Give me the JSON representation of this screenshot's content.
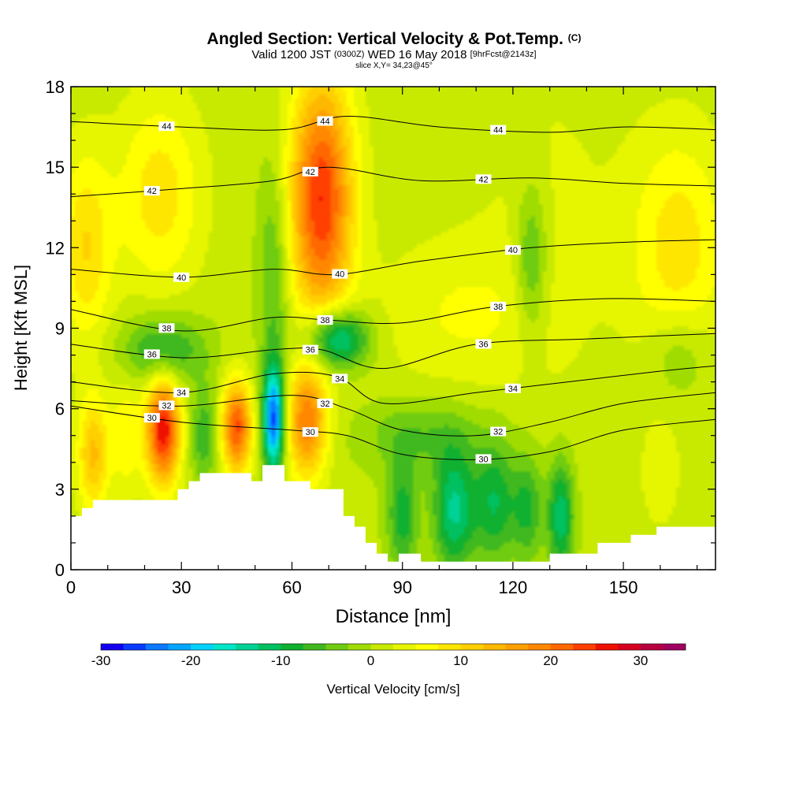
{
  "header": {
    "title_main": "Angled Section: Vertical Velocity & Pot.Temp.",
    "title_tag": "(C)",
    "valid_prefix": "Valid 1200 JST",
    "valid_utc": "(0300Z)",
    "valid_date": "WED 16 May 2018",
    "forecast_info": "[9hrFcst@2143z]",
    "slice_info": "slice X,Y= 34,23@45°"
  },
  "chart_data": {
    "type": "heatmap",
    "xlabel": "Distance [nm]",
    "ylabel": "Height [Kft MSL]",
    "xlim": [
      0,
      175
    ],
    "ylim": [
      0,
      18
    ],
    "x_ticks": [
      0,
      30,
      60,
      90,
      120,
      150
    ],
    "y_ticks": [
      0,
      3,
      6,
      9,
      12,
      15,
      18
    ],
    "colorbar": {
      "label": "Vertical Velocity [cm/s]",
      "min": -30,
      "max": 35,
      "step": 2.5,
      "ticks": [
        -30,
        -20,
        -10,
        0,
        10,
        20,
        30
      ],
      "colors": [
        "#1400f0",
        "#0a3cff",
        "#0a78ff",
        "#00a6ff",
        "#00d2ff",
        "#00e6c8",
        "#00d296",
        "#00c060",
        "#10b030",
        "#40b820",
        "#70cc10",
        "#a0dc00",
        "#c8ea00",
        "#e6f500",
        "#ffff00",
        "#ffe600",
        "#ffd000",
        "#ffb800",
        "#ffa000",
        "#ff8800",
        "#ff6800",
        "#ff4000",
        "#f01000",
        "#d80020",
        "#b80040",
        "#a00060",
        "#800080"
      ]
    },
    "theta_contours": [
      {
        "label": "30",
        "points": [
          [
            0,
            6.1
          ],
          [
            30,
            5.5
          ],
          [
            60,
            5.2
          ],
          [
            75,
            5.0
          ],
          [
            90,
            4.3
          ],
          [
            110,
            4.1
          ],
          [
            130,
            4.4
          ],
          [
            150,
            5.2
          ],
          [
            175,
            5.6
          ]
        ]
      },
      {
        "label": "32",
        "points": [
          [
            0,
            6.3
          ],
          [
            30,
            6.1
          ],
          [
            60,
            6.5
          ],
          [
            75,
            6.0
          ],
          [
            90,
            5.2
          ],
          [
            110,
            5.0
          ],
          [
            130,
            5.5
          ],
          [
            150,
            6.2
          ],
          [
            175,
            6.6
          ]
        ]
      },
      {
        "label": "34",
        "points": [
          [
            0,
            7.0
          ],
          [
            30,
            6.6
          ],
          [
            55,
            7.3
          ],
          [
            72,
            7.2
          ],
          [
            85,
            6.2
          ],
          [
            110,
            6.6
          ],
          [
            135,
            7.0
          ],
          [
            160,
            7.4
          ],
          [
            175,
            7.6
          ]
        ]
      },
      {
        "label": "36",
        "points": [
          [
            0,
            8.4
          ],
          [
            30,
            7.9
          ],
          [
            55,
            8.2
          ],
          [
            68,
            8.2
          ],
          [
            85,
            7.5
          ],
          [
            110,
            8.4
          ],
          [
            140,
            8.6
          ],
          [
            175,
            8.8
          ]
        ]
      },
      {
        "label": "38",
        "points": [
          [
            0,
            9.7
          ],
          [
            30,
            8.9
          ],
          [
            55,
            9.4
          ],
          [
            70,
            9.3
          ],
          [
            90,
            9.2
          ],
          [
            115,
            9.8
          ],
          [
            145,
            10.1
          ],
          [
            175,
            10.0
          ]
        ]
      },
      {
        "label": "40",
        "points": [
          [
            0,
            11.2
          ],
          [
            30,
            10.9
          ],
          [
            55,
            11.2
          ],
          [
            72,
            11.0
          ],
          [
            95,
            11.5
          ],
          [
            125,
            12.0
          ],
          [
            150,
            12.2
          ],
          [
            175,
            12.3
          ]
        ]
      },
      {
        "label": "42",
        "points": [
          [
            0,
            13.9
          ],
          [
            30,
            14.2
          ],
          [
            55,
            14.5
          ],
          [
            70,
            15.0
          ],
          [
            95,
            14.5
          ],
          [
            125,
            14.6
          ],
          [
            150,
            14.4
          ],
          [
            175,
            14.3
          ]
        ]
      },
      {
        "label": "44",
        "points": [
          [
            0,
            16.7
          ],
          [
            30,
            16.5
          ],
          [
            58,
            16.4
          ],
          [
            75,
            16.9
          ],
          [
            100,
            16.5
          ],
          [
            130,
            16.3
          ],
          [
            150,
            16.5
          ],
          [
            175,
            16.4
          ]
        ]
      }
    ],
    "terrain_profile": [
      [
        0,
        2.0
      ],
      [
        3,
        2.0
      ],
      [
        3,
        2.3
      ],
      [
        6,
        2.3
      ],
      [
        6,
        2.6
      ],
      [
        29,
        2.6
      ],
      [
        29,
        3.0
      ],
      [
        32,
        3.0
      ],
      [
        32,
        3.3
      ],
      [
        35,
        3.3
      ],
      [
        35,
        3.6
      ],
      [
        49,
        3.6
      ],
      [
        49,
        3.3
      ],
      [
        52,
        3.3
      ],
      [
        52,
        3.9
      ],
      [
        58,
        3.9
      ],
      [
        58,
        3.3
      ],
      [
        65,
        3.3
      ],
      [
        65,
        3.0
      ],
      [
        74,
        3.0
      ],
      [
        74,
        2.0
      ],
      [
        77,
        2.0
      ],
      [
        77,
        1.6
      ],
      [
        80,
        1.6
      ],
      [
        80,
        1.0
      ],
      [
        83,
        1.0
      ],
      [
        83,
        0.6
      ],
      [
        86,
        0.6
      ],
      [
        86,
        0.3
      ],
      [
        89,
        0.3
      ],
      [
        89,
        0.6
      ],
      [
        95,
        0.6
      ],
      [
        95,
        0.3
      ],
      [
        130,
        0.3
      ],
      [
        130,
        0.6
      ],
      [
        143,
        0.6
      ],
      [
        143,
        1.0
      ],
      [
        152,
        1.0
      ],
      [
        152,
        1.3
      ],
      [
        159,
        1.3
      ],
      [
        159,
        1.6
      ],
      [
        175,
        1.6
      ]
    ],
    "velocity_cells": [
      {
        "x": 68,
        "y": 13.8,
        "sx": 6,
        "sy": 3.2,
        "v": 24
      },
      {
        "x": 24,
        "y": 14.0,
        "sx": 8,
        "sy": 2.5,
        "v": 8
      },
      {
        "x": 4,
        "y": 12.0,
        "sx": 5,
        "sy": 2.5,
        "v": 9
      },
      {
        "x": 165,
        "y": 12.0,
        "sx": 9,
        "sy": 3,
        "v": 8
      },
      {
        "x": 130,
        "y": 13,
        "sx": 15,
        "sy": 5,
        "v": 2
      },
      {
        "x": 105,
        "y": 9.5,
        "sx": 16,
        "sy": 2,
        "v": 4
      },
      {
        "x": 25,
        "y": 5.2,
        "sx": 3.2,
        "sy": 1.4,
        "v": 26
      },
      {
        "x": 45,
        "y": 5.3,
        "sx": 2.8,
        "sy": 1.2,
        "v": 22
      },
      {
        "x": 64,
        "y": 5.5,
        "sx": 3.8,
        "sy": 1.5,
        "v": 18
      },
      {
        "x": 6,
        "y": 4.3,
        "sx": 3,
        "sy": 1.5,
        "v": 12
      },
      {
        "x": 36,
        "y": 5.0,
        "sx": 2.5,
        "sy": 1.3,
        "v": -8
      },
      {
        "x": 55,
        "y": 5.6,
        "sx": 2.0,
        "sy": 1.4,
        "v": -26
      },
      {
        "x": 15,
        "y": 5.0,
        "sx": 3,
        "sy": 1.5,
        "v": 6
      },
      {
        "x": 72,
        "y": 8.6,
        "sx": 6,
        "sy": 0.8,
        "v": -18
      },
      {
        "x": 25,
        "y": 8.2,
        "sx": 8,
        "sy": 0.9,
        "v": -10
      },
      {
        "x": 55,
        "y": 11.0,
        "sx": 3,
        "sy": 3,
        "v": -7
      },
      {
        "x": 95,
        "y": 5.0,
        "sx": 12,
        "sy": 1.0,
        "v": -6
      },
      {
        "x": 104,
        "y": 2.2,
        "sx": 4,
        "sy": 1.6,
        "v": -14
      },
      {
        "x": 115,
        "y": 2.5,
        "sx": 4,
        "sy": 1.6,
        "v": -11
      },
      {
        "x": 124,
        "y": 2.3,
        "sx": 3,
        "sy": 1.4,
        "v": -9
      },
      {
        "x": 133,
        "y": 2.0,
        "sx": 2.5,
        "sy": 1.5,
        "v": -13
      },
      {
        "x": 90,
        "y": 2.0,
        "sx": 3,
        "sy": 1.5,
        "v": -10
      },
      {
        "x": 125,
        "y": 11.5,
        "sx": 3,
        "sy": 2,
        "v": -8
      },
      {
        "x": 165,
        "y": 8.0,
        "sx": 6,
        "sy": 1.2,
        "v": -5
      },
      {
        "x": 160,
        "y": 3.5,
        "sx": 4,
        "sy": 1.5,
        "v": 3
      }
    ]
  }
}
